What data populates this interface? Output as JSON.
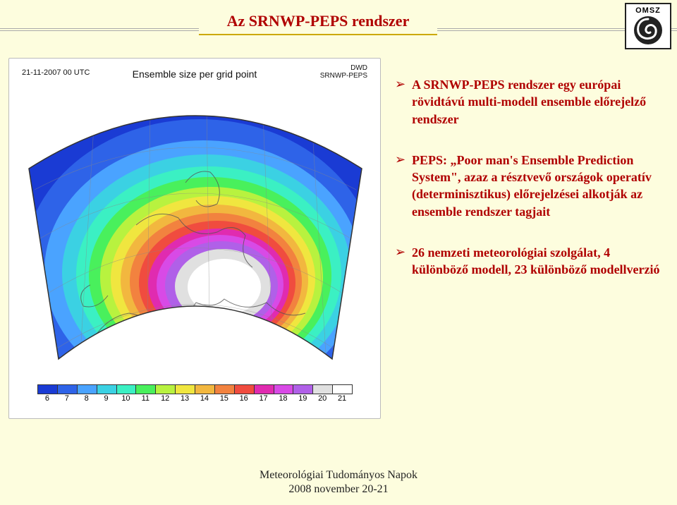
{
  "title": "Az SRNWP-PEPS rendszer",
  "logo_text": "OMSZ",
  "chart": {
    "header_left": "21-11-2007 00 UTC",
    "header_center": "Ensemble size per grid point",
    "header_right_1": "DWD",
    "header_right_2": "SRNWP-PEPS",
    "legend_colors": [
      "#1a3bd4",
      "#2e63e8",
      "#4aa3ff",
      "#3bd1e3",
      "#3bf0c3",
      "#49f05c",
      "#b8f23f",
      "#f0e63f",
      "#f2b73f",
      "#f2823f",
      "#f04c3f",
      "#e02bb0",
      "#d84ae6",
      "#b060e8",
      "#e0e0e0",
      "#ffffff"
    ],
    "legend_labels": [
      "6",
      "7",
      "8",
      "9",
      "10",
      "11",
      "12",
      "13",
      "14",
      "15",
      "16",
      "17",
      "18",
      "19",
      "20",
      "21"
    ]
  },
  "bullets": [
    "A SRNWP-PEPS rendszer egy európai rövidtávú multi-modell ensemble előrejelző rendszer",
    "PEPS: „Poor man's Ensemble Prediction System\", azaz a résztvevő országok operatív (determinisztikus) előrejelzései alkotják az ensemble rendszer tagjait",
    "26 nemzeti meteorológiai szolgálat, 4 különböző modell, 23 különböző modellverzió"
  ],
  "footer_line1": "Meteorológiai Tudományos Napok",
  "footer_line2": "2008 november 20-21"
}
